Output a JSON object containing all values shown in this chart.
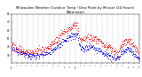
{
  "title": "Milwaukee Weather Outdoor Temp / Dew Point by Minute (24 Hours) (Alternate)",
  "title_fontsize": 3.5,
  "background_color": "#ffffff",
  "temp_color": "#ff0000",
  "dew_color": "#0000ff",
  "grid_color": "#888888",
  "ylim": [
    20,
    80
  ],
  "xlim": [
    0,
    1440
  ],
  "yticks": [
    30,
    40,
    50,
    60,
    70,
    80
  ],
  "xtick_positions": [
    0,
    60,
    120,
    180,
    240,
    300,
    360,
    420,
    480,
    540,
    600,
    660,
    720,
    780,
    840,
    900,
    960,
    1020,
    1080,
    1140,
    1200,
    1260,
    1320,
    1380,
    1440
  ],
  "xtick_labels": [
    "12a",
    "1",
    "2",
    "3",
    "4",
    "5",
    "6",
    "7",
    "8",
    "9",
    "10",
    "11",
    "12p",
    "1",
    "2",
    "3",
    "4",
    "5",
    "6",
    "7",
    "8",
    "9",
    "10",
    "11",
    "12"
  ],
  "temp_profile": [
    [
      0,
      42
    ],
    [
      60,
      38
    ],
    [
      120,
      35
    ],
    [
      180,
      34
    ],
    [
      240,
      33
    ],
    [
      300,
      34
    ],
    [
      360,
      36
    ],
    [
      420,
      40
    ],
    [
      480,
      45
    ],
    [
      540,
      52
    ],
    [
      600,
      58
    ],
    [
      660,
      63
    ],
    [
      720,
      67
    ],
    [
      740,
      68
    ],
    [
      760,
      55
    ],
    [
      780,
      48
    ],
    [
      840,
      50
    ],
    [
      900,
      52
    ],
    [
      960,
      48
    ],
    [
      1020,
      44
    ],
    [
      1080,
      42
    ],
    [
      1140,
      35
    ],
    [
      1200,
      32
    ],
    [
      1260,
      45
    ],
    [
      1320,
      48
    ],
    [
      1380,
      42
    ],
    [
      1440,
      30
    ]
  ],
  "dew_profile": [
    [
      0,
      38
    ],
    [
      60,
      35
    ],
    [
      120,
      32
    ],
    [
      180,
      30
    ],
    [
      240,
      29
    ],
    [
      300,
      30
    ],
    [
      360,
      31
    ],
    [
      420,
      34
    ],
    [
      480,
      37
    ],
    [
      540,
      42
    ],
    [
      600,
      48
    ],
    [
      660,
      52
    ],
    [
      720,
      55
    ],
    [
      740,
      56
    ],
    [
      760,
      45
    ],
    [
      780,
      37
    ],
    [
      840,
      38
    ],
    [
      900,
      40
    ],
    [
      960,
      37
    ],
    [
      1020,
      34
    ],
    [
      1080,
      30
    ],
    [
      1140,
      27
    ],
    [
      1200,
      25
    ],
    [
      1260,
      35
    ],
    [
      1320,
      38
    ],
    [
      1380,
      32
    ],
    [
      1440,
      24
    ]
  ],
  "noise_temp": 2.5,
  "noise_dew": 2.0,
  "dot_size": 0.4,
  "marker_size": 0.5
}
